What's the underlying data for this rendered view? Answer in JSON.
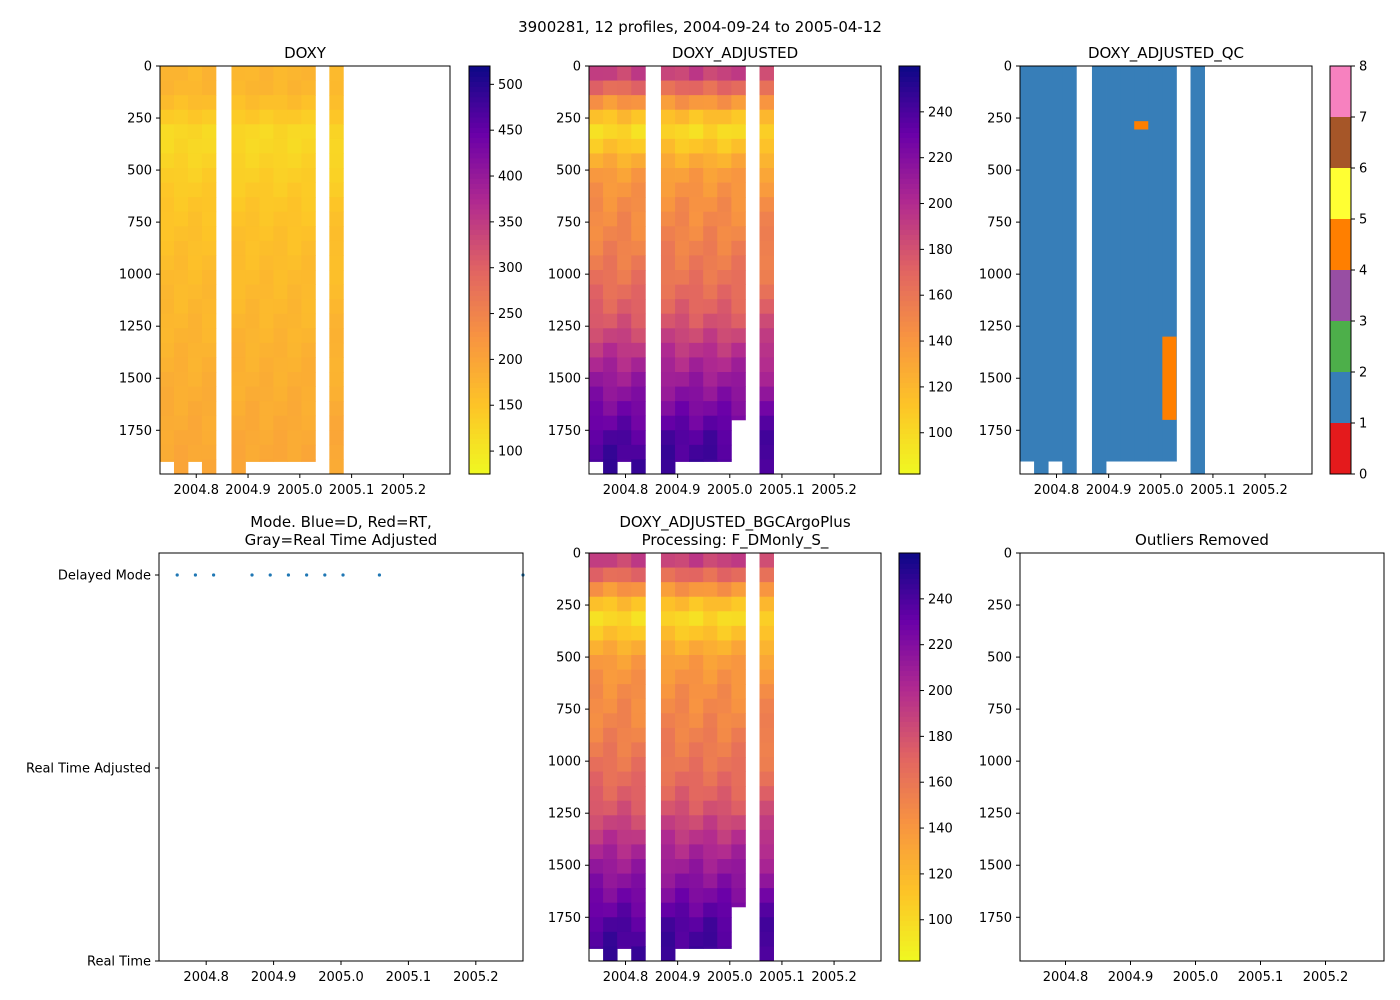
{
  "figure": {
    "suptitle": "3900281, 12 profiles, 2004-09-24 to 2005-04-12"
  },
  "colors": {
    "plasma_r": [
      "#f0f921",
      "#fdc527",
      "#f89540",
      "#e16462",
      "#b12a90",
      "#6a00a8",
      "#0d0887"
    ],
    "qc": [
      "#e41a1c",
      "#377eb8",
      "#4daf4a",
      "#984ea3",
      "#ff7f00",
      "#ffff33",
      "#a65628",
      "#f781bf",
      "#999999"
    ],
    "mode_point": "#1f77b4"
  },
  "chart_data": [
    {
      "id": "doxy",
      "type": "heatmap",
      "title": "DOXY",
      "xlim": [
        2004.73,
        2005.29
      ],
      "ylim": [
        1960,
        0
      ],
      "x_ticks": [
        2004.8,
        2004.9,
        2005.0,
        2005.1,
        2005.2
      ],
      "x_tick_labels": [
        "2004.8",
        "2004.9",
        "2005.0",
        "2005.1",
        "2005.2"
      ],
      "y_ticks": [
        0,
        250,
        500,
        750,
        1000,
        1250,
        1500,
        1750
      ],
      "y_tick_labels": [
        "0",
        "250",
        "500",
        "750",
        "1000",
        "1250",
        "1500",
        "1750"
      ],
      "colorbar": {
        "vmin": 75,
        "vmax": 520,
        "cmap": "plasma_r",
        "ticks": [
          100,
          150,
          200,
          250,
          300,
          350,
          400,
          450,
          500
        ]
      },
      "profiles": [
        {
          "x0": 2004.73,
          "x1": 2004.757,
          "max_depth": 1900
        },
        {
          "x0": 2004.757,
          "x1": 2004.784,
          "max_depth": 1960
        },
        {
          "x0": 2004.784,
          "x1": 2004.811,
          "max_depth": 1900
        },
        {
          "x0": 2004.811,
          "x1": 2004.838,
          "max_depth": 1960
        },
        {
          "x0": 2004.868,
          "x1": 2004.895,
          "max_depth": 1960
        },
        {
          "x0": 2004.895,
          "x1": 2004.922,
          "max_depth": 1900
        },
        {
          "x0": 2004.922,
          "x1": 2004.949,
          "max_depth": 1900
        },
        {
          "x0": 2004.949,
          "x1": 2004.976,
          "max_depth": 1900
        },
        {
          "x0": 2004.976,
          "x1": 2005.003,
          "max_depth": 1900
        },
        {
          "x0": 2005.003,
          "x1": 2005.03,
          "max_depth": 1900
        },
        {
          "x0": 2005.057,
          "x1": 2005.084,
          "max_depth": 1960
        }
      ],
      "depth_value_profile": {
        "depths": [
          0,
          60,
          130,
          200,
          260,
          320,
          400,
          500,
          650,
          800,
          1000,
          1200,
          1400,
          1600,
          1800,
          1960
        ],
        "values": [
          165,
          178,
          168,
          155,
          138,
          122,
          124,
          134,
          147,
          156,
          164,
          171,
          179,
          186,
          192,
          195
        ]
      }
    },
    {
      "id": "doxy_adjusted",
      "type": "heatmap",
      "title": "DOXY_ADJUSTED",
      "xlim": [
        2004.73,
        2005.29
      ],
      "ylim": [
        1960,
        0
      ],
      "x_ticks": [
        2004.8,
        2004.9,
        2005.0,
        2005.1,
        2005.2
      ],
      "x_tick_labels": [
        "2004.8",
        "2004.9",
        "2005.0",
        "2005.1",
        "2005.2"
      ],
      "y_ticks": [
        0,
        250,
        500,
        750,
        1000,
        1250,
        1500,
        1750
      ],
      "y_tick_labels": [
        "0",
        "250",
        "500",
        "750",
        "1000",
        "1250",
        "1500",
        "1750"
      ],
      "colorbar": {
        "vmin": 82,
        "vmax": 260,
        "cmap": "plasma_r",
        "ticks": [
          100,
          120,
          140,
          160,
          180,
          200,
          220,
          240
        ]
      },
      "profiles": [
        {
          "x0": 2004.73,
          "x1": 2004.757,
          "max_depth": 1900
        },
        {
          "x0": 2004.757,
          "x1": 2004.784,
          "max_depth": 1960
        },
        {
          "x0": 2004.784,
          "x1": 2004.811,
          "max_depth": 1900
        },
        {
          "x0": 2004.811,
          "x1": 2004.838,
          "max_depth": 1960
        },
        {
          "x0": 2004.868,
          "x1": 2004.895,
          "max_depth": 1960
        },
        {
          "x0": 2004.895,
          "x1": 2004.922,
          "max_depth": 1900
        },
        {
          "x0": 2004.922,
          "x1": 2004.949,
          "max_depth": 1900
        },
        {
          "x0": 2004.949,
          "x1": 2004.976,
          "max_depth": 1900
        },
        {
          "x0": 2004.976,
          "x1": 2005.003,
          "max_depth": 1900
        },
        {
          "x0": 2005.003,
          "x1": 2005.03,
          "max_depth": 1700
        },
        {
          "x0": 2005.057,
          "x1": 2005.084,
          "max_depth": 1960
        }
      ],
      "depth_value_profile": {
        "depths": [
          0,
          60,
          130,
          200,
          260,
          320,
          400,
          500,
          650,
          800,
          1000,
          1200,
          1400,
          1600,
          1800,
          1960
        ],
        "values": [
          200,
          180,
          160,
          130,
          110,
          100,
          115,
          135,
          145,
          150,
          160,
          175,
          200,
          220,
          240,
          245
        ]
      }
    },
    {
      "id": "doxy_adjusted_qc",
      "type": "heatmap",
      "title": "DOXY_ADJUSTED_QC",
      "xlim": [
        2004.73,
        2005.29
      ],
      "ylim": [
        1960,
        0
      ],
      "x_ticks": [
        2004.8,
        2004.9,
        2005.0,
        2005.1,
        2005.2
      ],
      "x_tick_labels": [
        "2004.8",
        "2004.9",
        "2005.0",
        "2005.1",
        "2005.2"
      ],
      "y_ticks": [
        0,
        250,
        500,
        750,
        1000,
        1250,
        1500,
        1750
      ],
      "y_tick_labels": [
        "0",
        "250",
        "500",
        "750",
        "1000",
        "1250",
        "1500",
        "1750"
      ],
      "colorbar": {
        "vmin": 0,
        "vmax": 8,
        "cmap": "qc",
        "ticks": [
          0,
          1,
          2,
          3,
          4,
          5,
          6,
          7,
          8
        ]
      },
      "background_flag": 1,
      "profiles": [
        {
          "x0": 2004.73,
          "x1": 2004.757,
          "max_depth": 1900
        },
        {
          "x0": 2004.757,
          "x1": 2004.784,
          "max_depth": 1960
        },
        {
          "x0": 2004.784,
          "x1": 2004.811,
          "max_depth": 1900
        },
        {
          "x0": 2004.811,
          "x1": 2004.838,
          "max_depth": 1960
        },
        {
          "x0": 2004.868,
          "x1": 2004.895,
          "max_depth": 1960
        },
        {
          "x0": 2004.895,
          "x1": 2004.922,
          "max_depth": 1900
        },
        {
          "x0": 2004.922,
          "x1": 2004.949,
          "max_depth": 1900
        },
        {
          "x0": 2004.949,
          "x1": 2004.976,
          "max_depth": 1900
        },
        {
          "x0": 2004.976,
          "x1": 2005.003,
          "max_depth": 1900
        },
        {
          "x0": 2005.003,
          "x1": 2005.03,
          "max_depth": 1900
        },
        {
          "x0": 2005.057,
          "x1": 2005.084,
          "max_depth": 1960
        }
      ],
      "flag_patches": [
        {
          "x0": 2004.949,
          "x1": 2004.976,
          "y0": 265,
          "y1": 305,
          "flag": 4
        },
        {
          "x0": 2005.003,
          "x1": 2005.03,
          "y0": 1300,
          "y1": 1700,
          "flag": 4
        }
      ]
    },
    {
      "id": "mode",
      "type": "scatter",
      "title_lines": [
        "Mode. Blue=D, Red=RT,",
        "Gray=Real Time Adjusted"
      ],
      "xlim": [
        2004.73,
        2005.27
      ],
      "x_ticks": [
        2004.8,
        2004.9,
        2005.0,
        2005.1,
        2005.2
      ],
      "x_tick_labels": [
        "2004.8",
        "2004.9",
        "2005.0",
        "2005.1",
        "2005.2"
      ],
      "y_ticks": [
        0,
        1,
        2
      ],
      "y_tick_labels": [
        "Delayed Mode",
        "Real Time Adjusted",
        "Real Time"
      ],
      "points": {
        "x": [
          2004.757,
          2004.784,
          2004.811,
          2004.868,
          2004.895,
          2004.922,
          2004.949,
          2004.976,
          2005.003,
          2005.057,
          2005.27
        ],
        "y": [
          0,
          0,
          0,
          0,
          0,
          0,
          0,
          0,
          0,
          0,
          0
        ]
      }
    },
    {
      "id": "doxy_bgc",
      "type": "heatmap",
      "title_lines": [
        "DOXY_ADJUSTED_BGCArgoPlus",
        "Processing: F_DMonly_S_"
      ],
      "xlim": [
        2004.73,
        2005.29
      ],
      "ylim": [
        1960,
        0
      ],
      "x_ticks": [
        2004.8,
        2004.9,
        2005.0,
        2005.1,
        2005.2
      ],
      "x_tick_labels": [
        "2004.8",
        "2004.9",
        "2005.0",
        "2005.1",
        "2005.2"
      ],
      "y_ticks": [
        0,
        250,
        500,
        750,
        1000,
        1250,
        1500,
        1750
      ],
      "y_tick_labels": [
        "0",
        "250",
        "500",
        "750",
        "1000",
        "1250",
        "1500",
        "1750"
      ],
      "colorbar": {
        "vmin": 82,
        "vmax": 260,
        "cmap": "plasma_r",
        "ticks": [
          100,
          120,
          140,
          160,
          180,
          200,
          220,
          240
        ]
      },
      "profiles": [
        {
          "x0": 2004.73,
          "x1": 2004.757,
          "max_depth": 1900
        },
        {
          "x0": 2004.757,
          "x1": 2004.784,
          "max_depth": 1960
        },
        {
          "x0": 2004.784,
          "x1": 2004.811,
          "max_depth": 1900
        },
        {
          "x0": 2004.811,
          "x1": 2004.838,
          "max_depth": 1960
        },
        {
          "x0": 2004.868,
          "x1": 2004.895,
          "max_depth": 1960
        },
        {
          "x0": 2004.895,
          "x1": 2004.922,
          "max_depth": 1900
        },
        {
          "x0": 2004.922,
          "x1": 2004.949,
          "max_depth": 1900
        },
        {
          "x0": 2004.949,
          "x1": 2004.976,
          "max_depth": 1900
        },
        {
          "x0": 2004.976,
          "x1": 2005.003,
          "max_depth": 1900
        },
        {
          "x0": 2005.003,
          "x1": 2005.03,
          "max_depth": 1700
        },
        {
          "x0": 2005.057,
          "x1": 2005.084,
          "max_depth": 1960
        }
      ],
      "depth_value_profile": {
        "depths": [
          0,
          60,
          130,
          200,
          260,
          320,
          400,
          500,
          650,
          800,
          1000,
          1200,
          1400,
          1600,
          1800,
          1960
        ],
        "values": [
          200,
          180,
          160,
          130,
          110,
          100,
          115,
          135,
          145,
          150,
          160,
          175,
          200,
          220,
          240,
          245
        ]
      }
    },
    {
      "id": "outliers",
      "type": "scatter",
      "title": "Outliers Removed",
      "xlim": [
        2004.73,
        2005.29
      ],
      "ylim": [
        1960,
        0
      ],
      "x_ticks": [
        2004.8,
        2004.9,
        2005.0,
        2005.1,
        2005.2
      ],
      "x_tick_labels": [
        "2004.8",
        "2004.9",
        "2005.0",
        "2005.1",
        "2005.2"
      ],
      "y_ticks": [
        0,
        250,
        500,
        750,
        1000,
        1250,
        1500,
        1750
      ],
      "y_tick_labels": [
        "0",
        "250",
        "500",
        "750",
        "1000",
        "1250",
        "1500",
        "1750"
      ],
      "points": {
        "x": [],
        "y": []
      }
    }
  ]
}
